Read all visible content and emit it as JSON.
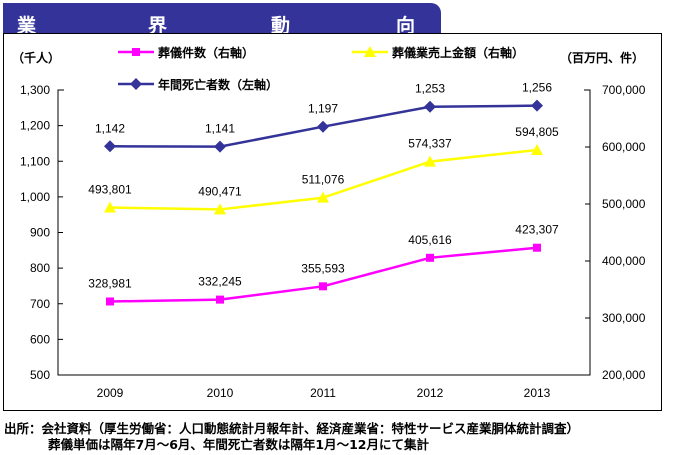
{
  "header": {
    "chars": [
      "業",
      "界",
      "動",
      "向"
    ]
  },
  "source": {
    "line1": "出所：会社資料（厚生労働省：人口動態統計月報年計、経済産業省：特性サービス産業胴体統計調査）",
    "line2": "葬儀単価は隔年7月～6月、年間死亡者数は隔年1月～12月にて集計"
  },
  "chart_data": {
    "type": "line",
    "x": [
      "2009",
      "2010",
      "2011",
      "2012",
      "2013"
    ],
    "ylabel_left": "（千人）",
    "ylabel_right": "（百万円、件）",
    "ylim_left": [
      500,
      1300
    ],
    "ylim_right": [
      200000,
      700000
    ],
    "yticks_left": [
      "500",
      "600",
      "700",
      "800",
      "900",
      "1,000",
      "1,100",
      "1,200",
      "1,300"
    ],
    "yticks_right": [
      "200,000",
      "300,000",
      "400,000",
      "500,000",
      "600,000",
      "700,000"
    ],
    "grid": false,
    "series": [
      {
        "name": "葬儀件数（右軸）",
        "axis": "right",
        "color": "#ff00ff",
        "marker": "square",
        "values": [
          328981,
          332245,
          355593,
          405616,
          423307
        ],
        "labels": [
          "328,981",
          "332,245",
          "355,593",
          "405,616",
          "423,307"
        ]
      },
      {
        "name": "葬儀業売上金額（右軸）",
        "axis": "right",
        "color": "#ffff00",
        "marker": "triangle",
        "values": [
          493801,
          490471,
          511076,
          574337,
          594805
        ],
        "labels": [
          "493,801",
          "490,471",
          "511,076",
          "574,337",
          "594,805"
        ]
      },
      {
        "name": "年間死亡者数（左軸）",
        "axis": "left",
        "color": "#333399",
        "marker": "diamond",
        "values": [
          1142,
          1141,
          1197,
          1253,
          1256
        ],
        "labels": [
          "1,142",
          "1,141",
          "1,197",
          "1,253",
          "1,256"
        ]
      }
    ]
  }
}
